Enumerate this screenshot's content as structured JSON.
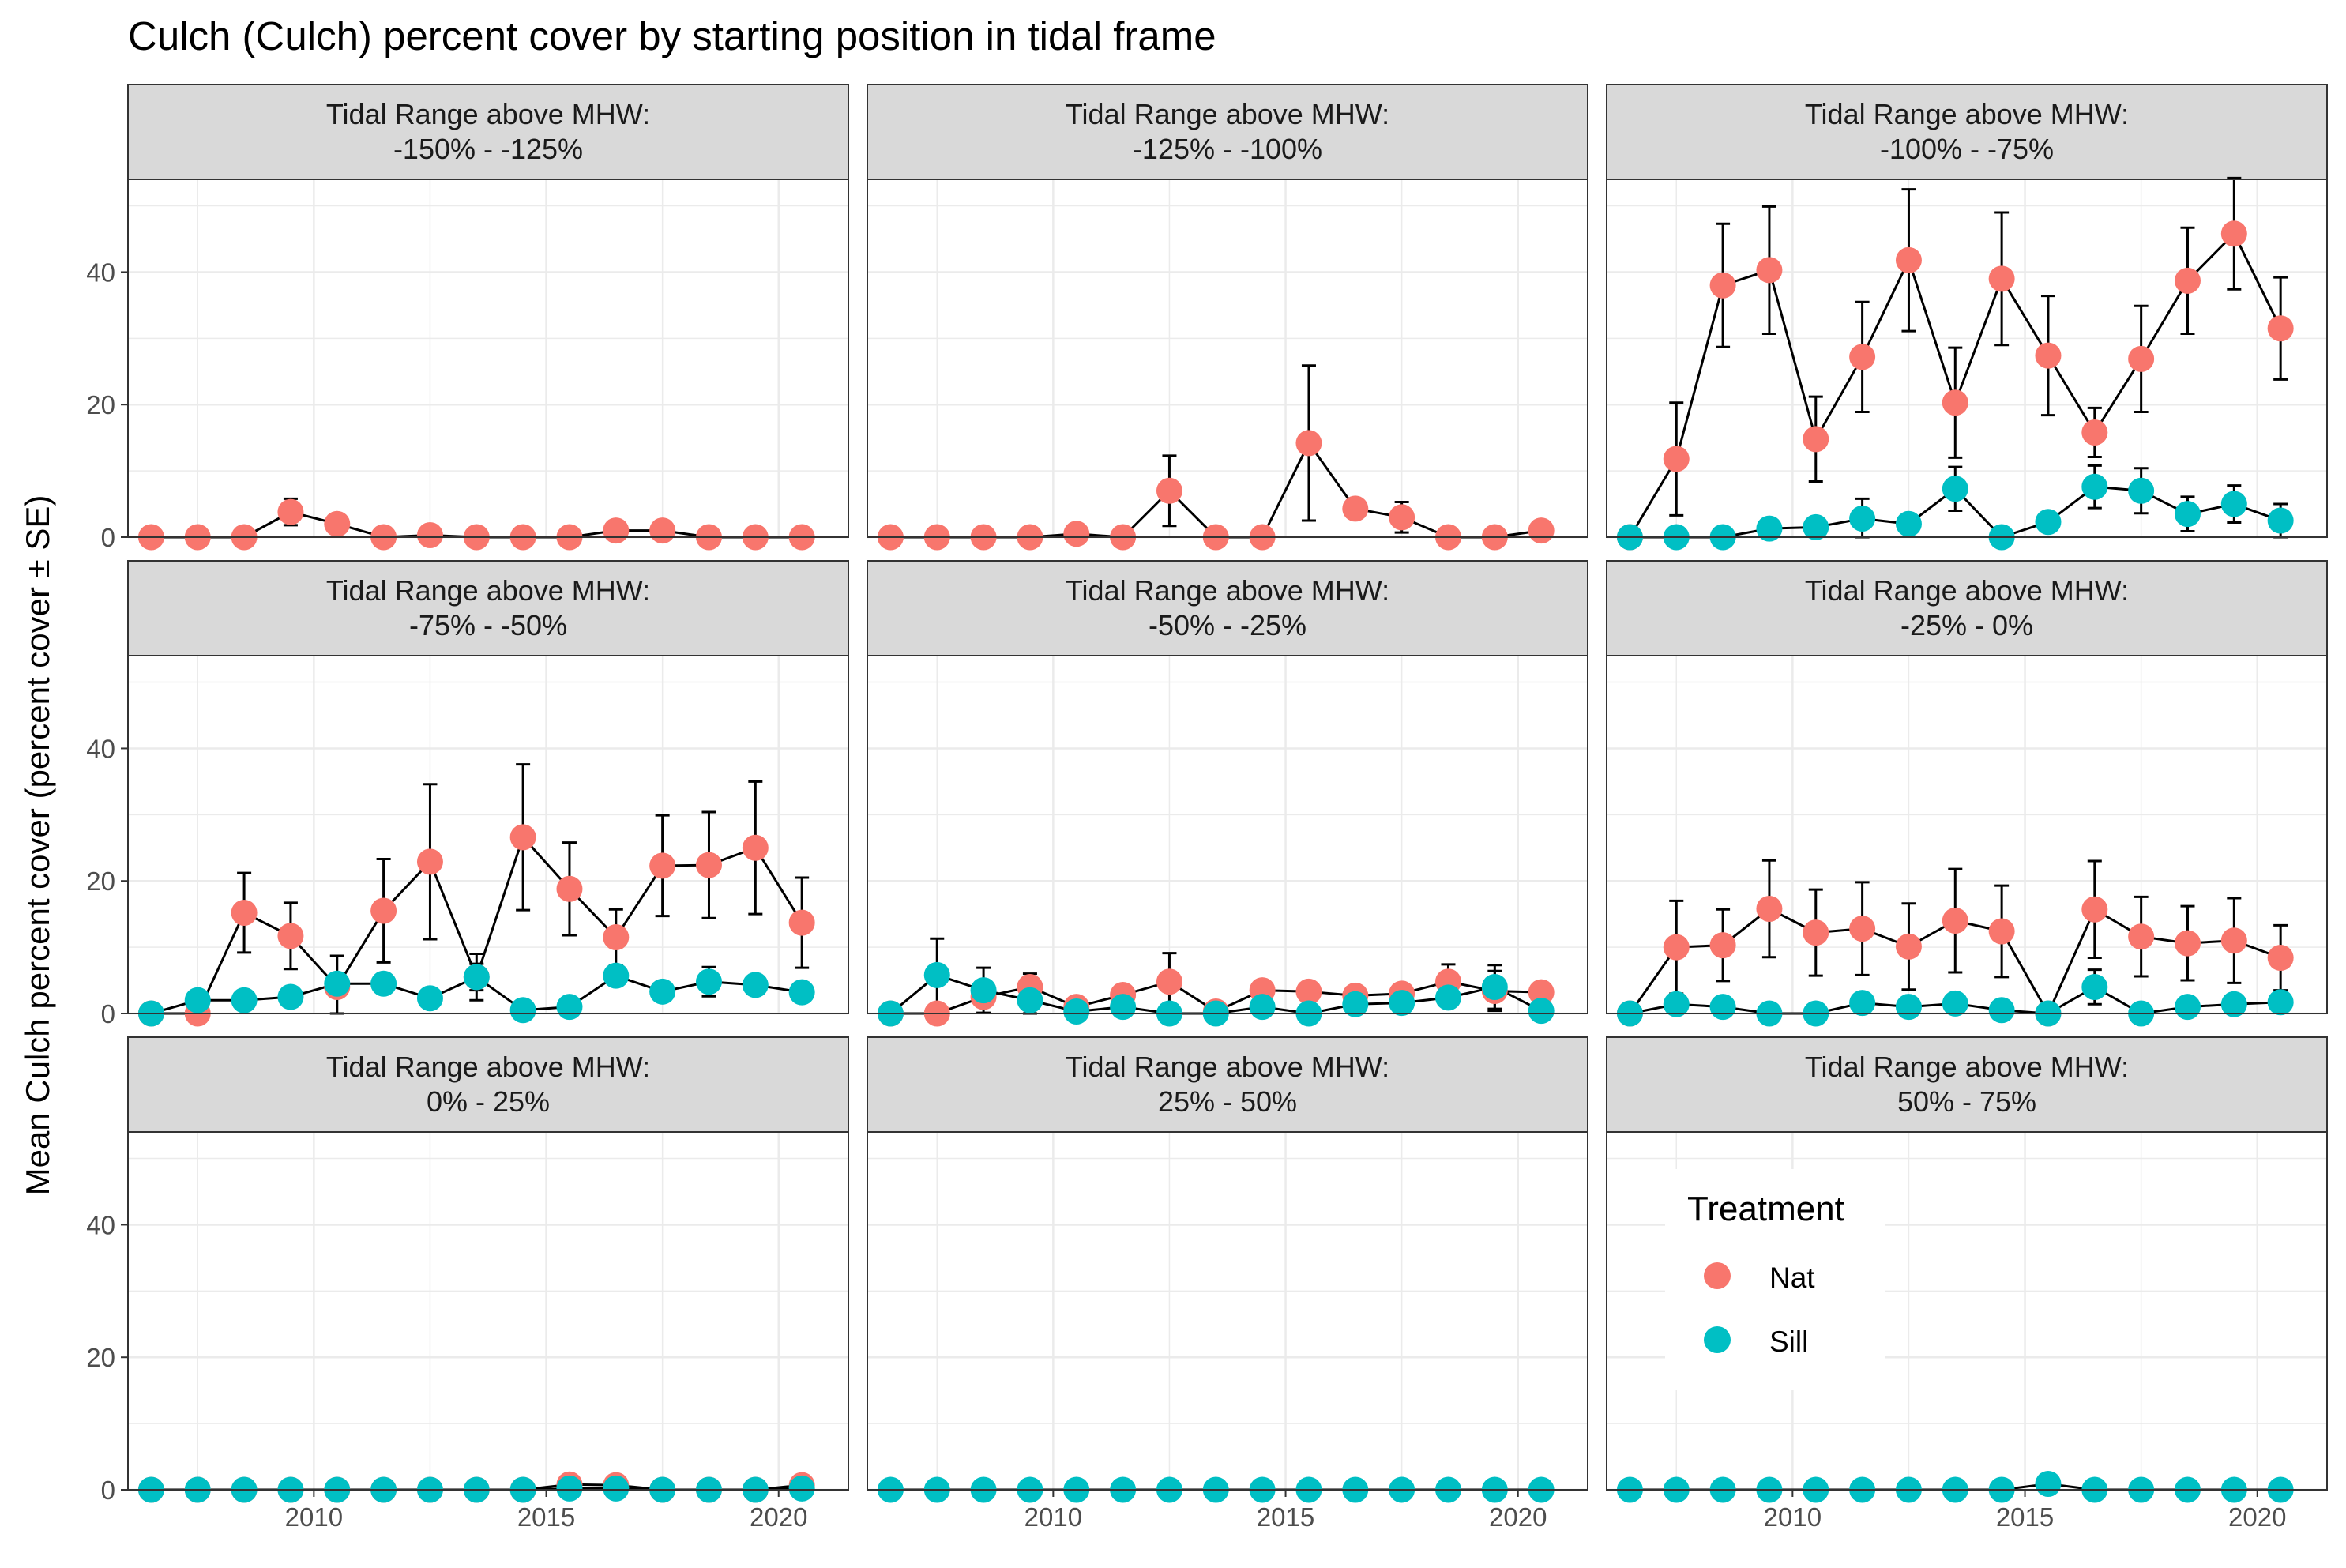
{
  "title": "Culch (Culch) percent cover by starting position in tidal frame",
  "ylabel": "Mean Culch percent cover (percent cover ± SE)",
  "strip_header": "Tidal Range above MHW:",
  "colors": {
    "Nat": "#F8766D",
    "Sill": "#00BFC4",
    "line": "#000000",
    "grid": "#EBEBEB",
    "strip_fill": "#D9D9D9"
  },
  "legend": {
    "title": "Treatment",
    "items": [
      {
        "name": "Nat"
      },
      {
        "name": "Sill"
      }
    ],
    "placement": "bottom-right panel"
  },
  "chart_data": {
    "type": "scatter",
    "xlim": [
      2006,
      2021.5
    ],
    "ylim": [
      0,
      54
    ],
    "x_ticks": [
      "2010",
      "2015",
      "2020"
    ],
    "y_ticks": [
      "0",
      "20",
      "40"
    ],
    "x_years": [
      2006.5,
      2007.5,
      2008.5,
      2009.5,
      2010.5,
      2011.5,
      2012.5,
      2013.5,
      2014.5,
      2015.5,
      2016.5,
      2017.5,
      2018.5,
      2019.5,
      2020.5
    ],
    "grid": true,
    "panels": [
      {
        "label": "-150%  -  -125%",
        "series": [
          {
            "name": "Nat",
            "values": [
              0,
              0,
              0,
              3.8,
              2,
              0,
              0.3,
              0,
              0,
              0,
              1,
              1,
              0,
              0,
              0
            ],
            "se": [
              0,
              0,
              0,
              2,
              0.6,
              0,
              0,
              0,
              0,
              0,
              0.5,
              0.3,
              0,
              0,
              0
            ]
          }
        ]
      },
      {
        "label": "-125%  -  -100%",
        "series": [
          {
            "name": "Nat",
            "values": [
              0,
              0,
              0,
              0,
              0.5,
              0,
              7,
              0,
              0,
              14.2,
              4.3,
              3,
              0,
              0,
              1
            ],
            "se": [
              0,
              0,
              0,
              0,
              0,
              0,
              5.3,
              0,
              0,
              11.7,
              1,
              2.3,
              0,
              0,
              0
            ]
          }
        ]
      },
      {
        "label": "-100%  -  -75%",
        "series": [
          {
            "name": "Nat",
            "values": [
              0,
              11.8,
              38,
              40.3,
              14.8,
              27.2,
              41.8,
              20.3,
              39,
              27.4,
              15.8,
              26.9,
              38.7,
              45.8,
              31.5
            ],
            "se": [
              0,
              8.5,
              9.3,
              9.6,
              6.4,
              8.3,
              10.7,
              8.3,
              10,
              9,
              3.7,
              8,
              8,
              8.4,
              7.7
            ]
          },
          {
            "name": "Sill",
            "values": [
              0,
              0,
              0,
              1.3,
              1.5,
              2.8,
              2,
              7.3,
              0,
              2.3,
              7.6,
              7,
              3.5,
              5,
              2.5
            ],
            "se": [
              0,
              0,
              0,
              0,
              0,
              3,
              0,
              3.3,
              0,
              0,
              3.2,
              3.4,
              2.6,
              2.8,
              2.5
            ]
          }
        ]
      },
      {
        "label": "-75%  -  -50%",
        "series": [
          {
            "name": "Nat",
            "values": [
              0,
              0,
              15.2,
              11.7,
              4,
              15.5,
              22.9,
              5.5,
              26.6,
              18.8,
              11.5,
              22.3,
              22.4,
              25,
              13.7
            ],
            "se": [
              0,
              0,
              6,
              5,
              4.7,
              7.8,
              11.7,
              3.5,
              11,
              7,
              4.2,
              7.6,
              8,
              10,
              6.8
            ]
          },
          {
            "name": "Sill",
            "values": [
              0,
              2,
              2,
              2.5,
              4.5,
              4.5,
              2.3,
              5.5,
              0.5,
              1,
              5.7,
              3.3,
              4.8,
              4.3,
              3.2
            ],
            "se": [
              0,
              0,
              0,
              0,
              0,
              0,
              0,
              2,
              0,
              0,
              0,
              0,
              2.2,
              0,
              0
            ]
          }
        ]
      },
      {
        "label": "-50%  -  -25%",
        "series": [
          {
            "name": "Nat",
            "values": [
              0,
              0,
              2.5,
              4,
              1,
              2.8,
              4.8,
              0.3,
              3.5,
              3.3,
              2.7,
              3,
              4.8,
              3.4,
              3.2
            ],
            "se": [
              0,
              0,
              1,
              2,
              0,
              0,
              4.3,
              0,
              1,
              1,
              0,
              0,
              2.6,
              3,
              0
            ]
          },
          {
            "name": "Sill",
            "values": [
              0,
              5.8,
              3.5,
              2,
              0.3,
              1,
              0,
              0,
              1,
              0,
              1.4,
              1.6,
              2.4,
              4,
              0.4
            ],
            "se": [
              0,
              5.5,
              3.4,
              2,
              0,
              0,
              0,
              0,
              0,
              0,
              0,
              0,
              0,
              3.3,
              0
            ]
          }
        ]
      },
      {
        "label": "-25%  -  0%",
        "series": [
          {
            "name": "Nat",
            "values": [
              0,
              10,
              10.3,
              15.8,
              12.2,
              12.8,
              10.1,
              14,
              12.4,
              0,
              15.7,
              11.6,
              10.6,
              11,
              8.4
            ],
            "se": [
              0,
              7,
              5.4,
              7.3,
              6.5,
              7,
              6.5,
              7.8,
              6.9,
              0,
              7.3,
              6,
              5.6,
              6.4,
              4.9
            ]
          },
          {
            "name": "Sill",
            "values": [
              0,
              1.4,
              1,
              0,
              0,
              1.6,
              1,
              1.5,
              0.5,
              0,
              4,
              0,
              1,
              1.4,
              1.7
            ],
            "se": [
              0,
              0,
              0,
              0,
              0,
              0,
              0,
              0,
              0,
              0,
              2.6,
              0,
              0,
              0,
              0
            ]
          }
        ]
      },
      {
        "label": "0%  -  25%",
        "series": [
          {
            "name": "Nat",
            "values": [
              0,
              0,
              0,
              0,
              0,
              0,
              0,
              0,
              0,
              0.8,
              0.7,
              0,
              0,
              0,
              0.7
            ],
            "se": [
              0,
              0,
              0,
              0,
              0,
              0,
              0,
              0,
              0,
              0,
              0,
              0,
              0,
              0,
              0
            ]
          },
          {
            "name": "Sill",
            "values": [
              0,
              0,
              0,
              0,
              0,
              0,
              0,
              0,
              0,
              0.2,
              0.2,
              0,
              0,
              0,
              0.2
            ],
            "se": [
              0,
              0,
              0,
              0,
              0,
              0,
              0,
              0,
              0,
              0,
              0,
              0,
              0,
              0,
              0
            ]
          }
        ]
      },
      {
        "label": "25%  -  50%",
        "series": [
          {
            "name": "Sill",
            "values": [
              0,
              0,
              0,
              0,
              0,
              0,
              0,
              0,
              0,
              0,
              0,
              0,
              0,
              0,
              0
            ],
            "se": [
              0,
              0,
              0,
              0,
              0,
              0,
              0,
              0,
              0,
              0,
              0,
              0,
              0,
              0,
              0
            ]
          }
        ]
      },
      {
        "label": "50%  -  75%",
        "series": [
          {
            "name": "Sill",
            "values": [
              0,
              0,
              0,
              0,
              0,
              0,
              0,
              0,
              0,
              0.9,
              0,
              0,
              0,
              0,
              0
            ],
            "se": [
              0,
              0,
              0,
              0,
              0,
              0,
              0,
              0,
              0,
              0,
              0,
              0,
              0,
              0,
              0
            ]
          }
        ]
      }
    ]
  }
}
